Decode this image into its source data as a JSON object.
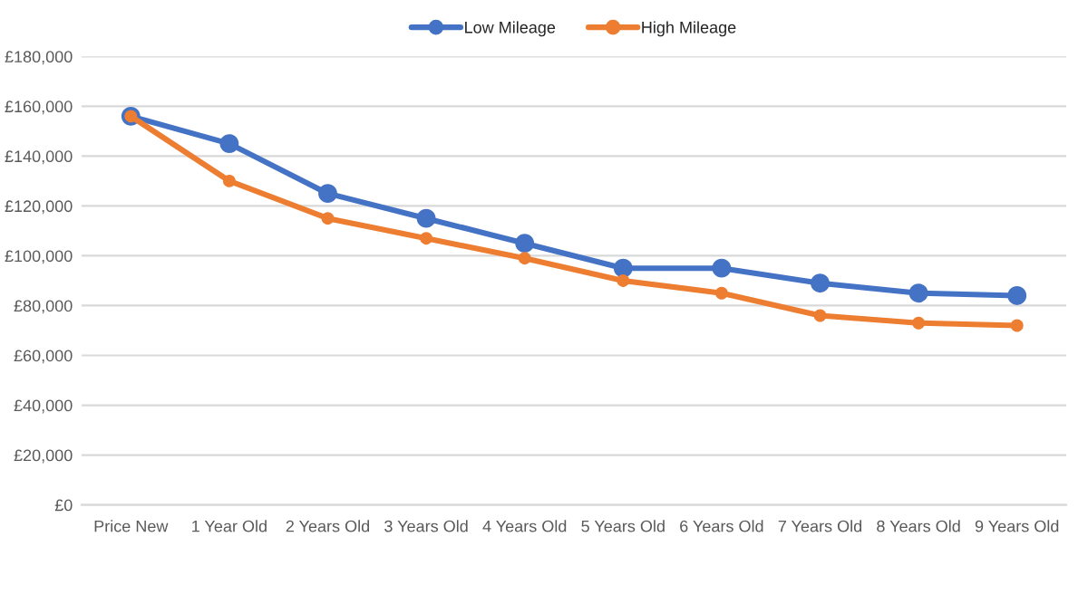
{
  "chart_data": {
    "type": "line",
    "categories": [
      "Price New",
      "1 Year Old",
      "2 Years Old",
      "3 Years Old",
      "4 Years Old",
      "5 Years Old",
      "6 Years Old",
      "7 Years Old",
      "8 Years Old",
      "9 Years Old"
    ],
    "series": [
      {
        "name": "Low Mileage",
        "color": "#4472c4",
        "values": [
          156000,
          145000,
          125000,
          115000,
          105000,
          95000,
          95000,
          89000,
          85000,
          84000
        ]
      },
      {
        "name": "High Mileage",
        "color": "#ed7d31",
        "values": [
          156000,
          130000,
          115000,
          107000,
          99000,
          90000,
          85000,
          76000,
          73000,
          72000
        ]
      }
    ],
    "ylim": [
      0,
      180000
    ],
    "yticks": [
      {
        "value": 0,
        "label": "£0"
      },
      {
        "value": 20000,
        "label": "£20,000"
      },
      {
        "value": 40000,
        "label": "£40,000"
      },
      {
        "value": 60000,
        "label": "£60,000"
      },
      {
        "value": 80000,
        "label": "£80,000"
      },
      {
        "value": 100000,
        "label": "£100,000"
      },
      {
        "value": 120000,
        "label": "£120,000"
      },
      {
        "value": 140000,
        "label": "£140,000"
      },
      {
        "value": 160000,
        "label": "£160,000"
      },
      {
        "value": 180000,
        "label": "£180,000"
      }
    ],
    "grid": "y",
    "legend": "top",
    "marker": "circle",
    "line_style": "solid"
  }
}
